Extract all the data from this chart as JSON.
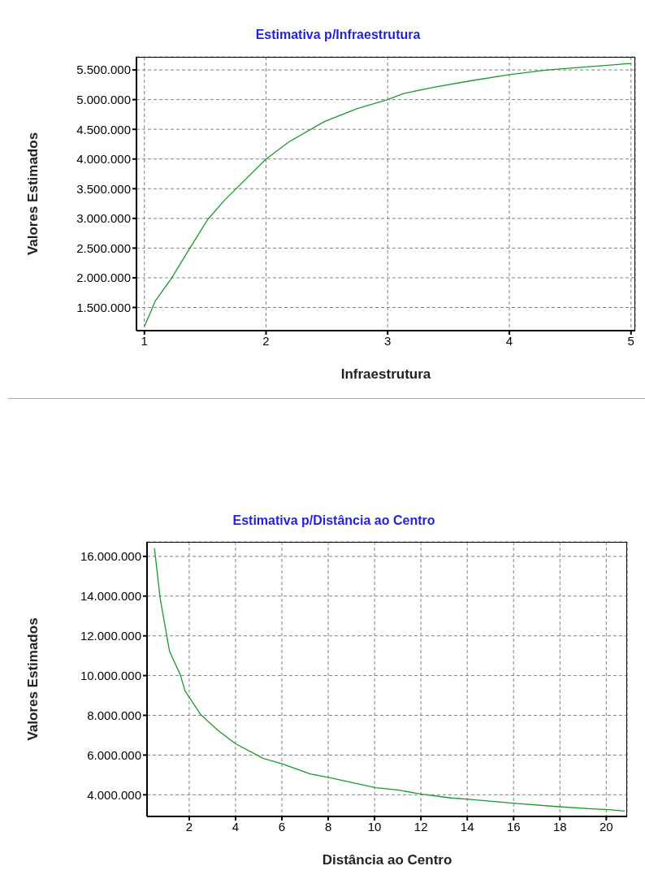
{
  "chart_data": [
    {
      "type": "line",
      "title": "Estimativa p/Infraestrutura",
      "xlabel": "Infraestrutura",
      "ylabel": "Valores Estimados",
      "x": [
        1,
        1.09,
        1.226,
        1.374,
        1.52,
        1.656,
        2,
        2.19,
        2.48,
        2.75,
        3,
        3.125,
        3.38,
        3.69,
        4,
        4.31,
        4.63,
        5
      ],
      "series": [
        {
          "color": "#1a9a2a",
          "values": [
            1180000,
            1610000,
            2000000,
            2500000,
            2980000,
            3300000,
            4000000,
            4290000,
            4630000,
            4850000,
            5000000,
            5100000,
            5210000,
            5320000,
            5420000,
            5500000,
            5550000,
            5610000
          ]
        }
      ],
      "xlim": [
        0.935,
        5.035
      ],
      "xticks": [
        1,
        2,
        3,
        4,
        5
      ],
      "ylim": [
        1110000,
        5720000
      ],
      "yticks": [
        {
          "value": 1500000,
          "label": "1.500.000"
        },
        {
          "value": 2000000,
          "label": "2.000.000"
        },
        {
          "value": 2500000,
          "label": "2.500.000"
        },
        {
          "value": 3000000,
          "label": "3.000.000"
        },
        {
          "value": 3500000,
          "label": "3.500.000"
        },
        {
          "value": 4000000,
          "label": "4.000.000"
        },
        {
          "value": 4500000,
          "label": "4.500.000"
        },
        {
          "value": 5000000,
          "label": "5.000.000"
        },
        {
          "value": 5500000,
          "label": "5.500.000"
        }
      ],
      "grid": true,
      "marker": "none",
      "line_style": "solid"
    },
    {
      "type": "line",
      "title": "Estimativa p/Distância ao Centro",
      "xlabel": "Distância ao Centro",
      "ylabel": "Valores Estimados",
      "x": [
        0.5,
        0.75,
        1.15,
        1.62,
        1.82,
        2.5,
        3.24,
        4,
        5.2,
        6,
        7.22,
        8.04,
        10.05,
        11,
        12.05,
        13.3,
        14.06,
        16.06,
        18.06,
        19.37,
        20.1,
        20.8
      ],
      "series": [
        {
          "color": "#1a9a2a",
          "values": [
            16410000,
            13860000,
            11230000,
            10030000,
            9230000,
            8030000,
            7240000,
            6570000,
            5830000,
            5560000,
            5050000,
            4870000,
            4360000,
            4240000,
            4030000,
            3840000,
            3770000,
            3570000,
            3390000,
            3290000,
            3250000,
            3180000
          ]
        }
      ],
      "xlim": [
        0.18,
        20.9
      ],
      "xticks": [
        2,
        4,
        6,
        8,
        10,
        12,
        14,
        16,
        18,
        20
      ],
      "ylim": [
        2910000,
        16730000
      ],
      "yticks": [
        {
          "value": 4000000,
          "label": "4.000.000"
        },
        {
          "value": 6000000,
          "label": "6.000.000"
        },
        {
          "value": 8000000,
          "label": "8.000.000"
        },
        {
          "value": 10000000,
          "label": "10.000.000"
        },
        {
          "value": 12000000,
          "label": "12.000.000"
        },
        {
          "value": 14000000,
          "label": "14.000.000"
        },
        {
          "value": 16000000,
          "label": "16.000.000"
        }
      ],
      "grid": true,
      "marker": "none",
      "line_style": "solid"
    }
  ]
}
